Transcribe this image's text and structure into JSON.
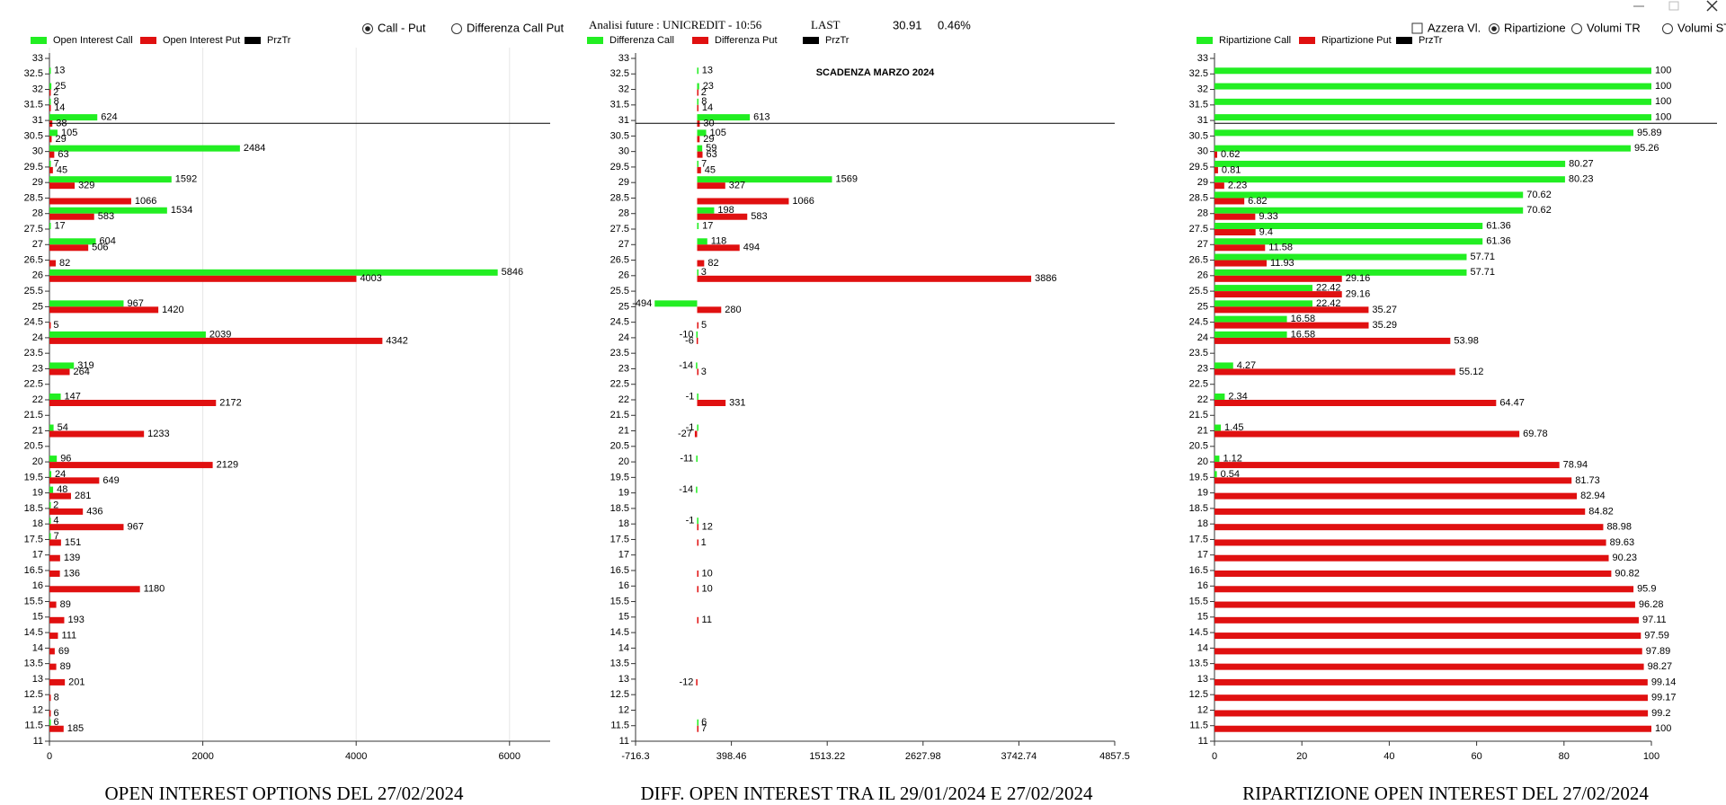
{
  "header": {
    "label": "Analisi future : UNICREDIT - 10:56",
    "last_label": "LAST",
    "last": 30.91,
    "change": "0.46%"
  },
  "controls": {
    "mode": [
      "Call - Put",
      "Differenza Call Put"
    ],
    "options": [
      "Azzera Vl.",
      "Ripartizione",
      "Volumi TR",
      "Volumi ST"
    ]
  },
  "chart_data": [
    {
      "type": "bar",
      "orientation": "horizontal",
      "title": "OPEN INTEREST OPTIONS DEL 27/02/2024",
      "categories": [
        33,
        32.5,
        32,
        31.5,
        31,
        30.5,
        30,
        29.5,
        29,
        28.5,
        28,
        27.5,
        27,
        26.5,
        26,
        25.5,
        25,
        24.5,
        24,
        23.5,
        23,
        22.5,
        22,
        21.5,
        21,
        20.5,
        20,
        19.5,
        19,
        18.5,
        18,
        17.5,
        17,
        16.5,
        16,
        15.5,
        15,
        14.5,
        14,
        13.5,
        13,
        12.5,
        12,
        11.5,
        11
      ],
      "series": [
        {
          "name": "Open Interest Call",
          "color": "#22ee22",
          "values": [
            null,
            13,
            25,
            8,
            624,
            105,
            2484,
            7,
            1592,
            null,
            1534,
            17,
            604,
            null,
            5846,
            null,
            967,
            null,
            2039,
            null,
            319,
            null,
            147,
            null,
            54,
            null,
            96,
            24,
            48,
            2,
            4,
            7,
            null,
            null,
            null,
            null,
            null,
            null,
            null,
            null,
            null,
            null,
            null,
            6,
            null
          ]
        },
        {
          "name": "Open Interest Put",
          "color": "#e01010",
          "values": [
            null,
            null,
            2,
            14,
            38,
            29,
            63,
            45,
            329,
            1066,
            583,
            null,
            506,
            82,
            4003,
            null,
            1420,
            5,
            4342,
            null,
            264,
            null,
            2172,
            null,
            1233,
            null,
            2129,
            649,
            281,
            436,
            967,
            151,
            139,
            136,
            1180,
            89,
            193,
            111,
            69,
            89,
            201,
            8,
            6,
            185,
            null
          ]
        }
      ],
      "price_legend": {
        "name": "PrzTr",
        "color": "#000000"
      },
      "xlim": [
        0,
        6530
      ],
      "xticks": [
        0,
        2000,
        4000,
        6000
      ],
      "grid": true
    },
    {
      "type": "bar",
      "orientation": "horizontal",
      "title": "DIFF. OPEN INTEREST TRA IL 29/01/2024 E 27/02/2024",
      "annotation": "SCADENZA MARZO 2024",
      "categories": [
        33,
        32.5,
        32,
        31.5,
        31,
        30.5,
        30,
        29.5,
        29,
        28.5,
        28,
        27.5,
        27,
        26.5,
        26,
        25.5,
        25,
        24.5,
        24,
        23.5,
        23,
        22.5,
        22,
        21.5,
        21,
        20.5,
        20,
        19.5,
        19,
        18.5,
        18,
        17.5,
        17,
        16.5,
        16,
        15.5,
        15,
        14.5,
        14,
        13.5,
        13,
        12.5,
        12,
        11.5,
        11
      ],
      "series": [
        {
          "name": "Differenza Call",
          "color": "#22ee22",
          "values": [
            null,
            13,
            23,
            8,
            613,
            105,
            59,
            7,
            1569,
            null,
            198,
            17,
            118,
            null,
            3,
            null,
            -494,
            null,
            -10,
            null,
            -14,
            null,
            -1,
            null,
            -1,
            null,
            -11,
            null,
            -14,
            null,
            -1,
            null,
            null,
            null,
            null,
            null,
            null,
            null,
            null,
            null,
            null,
            null,
            null,
            6,
            null
          ]
        },
        {
          "name": "Differenza Put",
          "color": "#e01010",
          "values": [
            null,
            null,
            2,
            14,
            30,
            29,
            63,
            45,
            327,
            1066,
            583,
            null,
            494,
            82,
            3886,
            null,
            280,
            5,
            -6,
            null,
            3,
            null,
            331,
            null,
            -27,
            null,
            null,
            null,
            null,
            null,
            12,
            1,
            null,
            10,
            10,
            null,
            11,
            null,
            null,
            null,
            -12,
            null,
            null,
            7,
            null
          ]
        }
      ],
      "price_legend": {
        "name": "PrzTr",
        "color": "#000000"
      },
      "xlim": [
        -716.3,
        4857.5
      ],
      "xticks": [
        -716.3,
        398.46,
        1513.22,
        2627.98,
        3742.74,
        4857.5
      ],
      "grid": false
    },
    {
      "type": "bar",
      "orientation": "horizontal",
      "title": "RIPARTIZIONE OPEN INTEREST DEL 27/02/2024",
      "categories": [
        33,
        32.5,
        32,
        31.5,
        31,
        30.5,
        30,
        29.5,
        29,
        28.5,
        28,
        27.5,
        27,
        26.5,
        26,
        25.5,
        25,
        24.5,
        24,
        23.5,
        23,
        22.5,
        22,
        21.5,
        21,
        20.5,
        20,
        19.5,
        19,
        18.5,
        18,
        17.5,
        17,
        16.5,
        16,
        15.5,
        15,
        14.5,
        14,
        13.5,
        13,
        12.5,
        12,
        11.5,
        11
      ],
      "series": [
        {
          "name": "Ripartizione Call",
          "color": "#22ee22",
          "values": [
            null,
            100,
            100,
            100,
            100,
            95.89,
            95.26,
            80.27,
            80.23,
            70.62,
            70.62,
            61.36,
            61.36,
            57.71,
            57.71,
            22.42,
            22.42,
            16.58,
            16.58,
            null,
            4.27,
            null,
            2.34,
            null,
            1.45,
            null,
            1.12,
            0.54,
            null,
            null,
            null,
            null,
            null,
            null,
            null,
            null,
            null,
            null,
            null,
            null,
            null,
            null,
            null,
            null,
            null
          ]
        },
        {
          "name": "Ripartizione Put",
          "color": "#e01010",
          "values": [
            null,
            null,
            null,
            null,
            null,
            null,
            0.62,
            0.81,
            2.23,
            6.82,
            9.33,
            9.4,
            11.58,
            11.93,
            29.16,
            29.16,
            35.27,
            35.29,
            53.98,
            null,
            55.12,
            null,
            64.47,
            null,
            69.78,
            null,
            78.94,
            81.73,
            82.94,
            84.82,
            88.98,
            89.63,
            90.23,
            90.82,
            95.9,
            96.28,
            97.11,
            97.59,
            97.89,
            98.27,
            99.14,
            99.17,
            99.2,
            100,
            null
          ]
        }
      ],
      "price_legend": {
        "name": "PrzTr",
        "color": "#000000"
      },
      "xlim": [
        0,
        100
      ],
      "xticks": [
        0,
        20,
        40,
        60,
        80,
        100
      ],
      "grid": false
    }
  ]
}
